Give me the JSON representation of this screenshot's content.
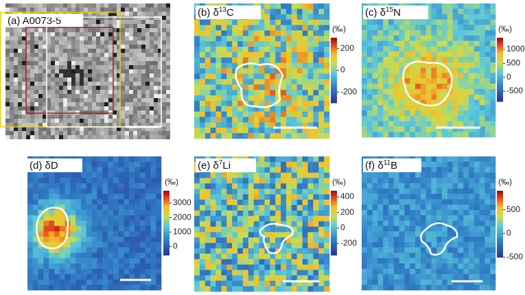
{
  "panels": [
    {
      "label": "(a) A0073-5"
    },
    {
      "label": "(b) δ",
      "sup": "13",
      "element": "C",
      "unit": "(‰)",
      "colorbar": {
        "lim": [
          -300,
          300
        ],
        "ticks": [
          200,
          0,
          -200
        ]
      }
    },
    {
      "label": "(c) δ",
      "sup": "15",
      "element": "N",
      "unit": "(‰)",
      "colorbar": {
        "lim": [
          -870,
          1420
        ],
        "ticks": [
          1000,
          500,
          0,
          -500
        ]
      }
    },
    {
      "label": "(d) δD",
      "unit": "(‰)",
      "colorbar": {
        "lim": [
          -600,
          3850
        ],
        "ticks": [
          3000,
          2000,
          1000,
          0
        ]
      }
    },
    {
      "label": "(e) δ",
      "sup": "7",
      "element": "Li",
      "unit": "(‰)",
      "colorbar": {
        "lim": [
          -350,
          480
        ],
        "ticks": [
          400,
          200,
          0,
          -200
        ]
      }
    },
    {
      "label": "(f) δ",
      "sup": "11",
      "element": "B",
      "unit": "(‰)",
      "colorbar": {
        "lim": [
          -500,
          900
        ],
        "ticks": [
          500,
          0,
          -500
        ]
      }
    }
  ]
}
